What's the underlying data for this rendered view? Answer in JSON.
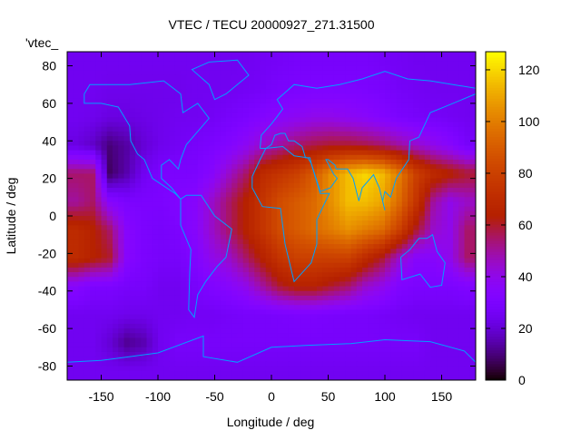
{
  "chart_data": {
    "type": "heatmap",
    "title": "VTEC / TECU 20000927_271.31500",
    "xlabel": "Longitude / deg",
    "ylabel": "Latitude / deg",
    "legend_key": "'vtec_",
    "xlim": [
      -180,
      180
    ],
    "ylim": [
      -87.5,
      87.5
    ],
    "xticks": [
      "-150",
      "-100",
      "-50",
      "0",
      "50",
      "100",
      "150"
    ],
    "xtick_values": [
      -150,
      -100,
      -50,
      0,
      50,
      100,
      150
    ],
    "yticks": [
      "80",
      "60",
      "40",
      "20",
      "0",
      "-20",
      "-40",
      "-60",
      "-80"
    ],
    "ytick_values": [
      80,
      60,
      40,
      20,
      0,
      -20,
      -40,
      -60,
      -80
    ],
    "colorbar": {
      "range": [
        0,
        127
      ],
      "ticks": [
        "0",
        "20",
        "40",
        "60",
        "80",
        "100",
        "120"
      ],
      "tick_values": [
        0,
        20,
        40,
        60,
        80,
        100,
        120
      ],
      "palette": "black-purple-red-orange-yellow"
    },
    "coastline_color": "#00a0ff",
    "grid_lon": [
      -172.5,
      -157.5,
      -142.5,
      -127.5,
      -112.5,
      -97.5,
      -82.5,
      -67.5,
      -52.5,
      -37.5,
      -22.5,
      -7.5,
      7.5,
      22.5,
      37.5,
      52.5,
      67.5,
      82.5,
      97.5,
      112.5,
      127.5,
      142.5,
      157.5,
      172.5
    ],
    "grid_lat": [
      82.5,
      67.5,
      52.5,
      37.5,
      22.5,
      7.5,
      -7.5,
      -22.5,
      -37.5,
      -52.5,
      -67.5,
      -82.5
    ],
    "values": [
      [
        25,
        25,
        25,
        25,
        25,
        25,
        25,
        25,
        25,
        25,
        25,
        26,
        27,
        28,
        28,
        28,
        28,
        28,
        27,
        26,
        25,
        25,
        25,
        25
      ],
      [
        25,
        25,
        24,
        24,
        24,
        24,
        24,
        25,
        25,
        25,
        26,
        27,
        29,
        30,
        31,
        31,
        31,
        30,
        29,
        27,
        26,
        25,
        25,
        25
      ],
      [
        25,
        24,
        22,
        22,
        23,
        24,
        25,
        25,
        26,
        28,
        30,
        33,
        36,
        38,
        40,
        40,
        38,
        36,
        33,
        30,
        28,
        27,
        26,
        25
      ],
      [
        22,
        18,
        10,
        14,
        20,
        24,
        26,
        28,
        30,
        33,
        38,
        45,
        50,
        55,
        58,
        60,
        60,
        58,
        55,
        50,
        45,
        40,
        35,
        28
      ],
      [
        55,
        55,
        8,
        15,
        25,
        30,
        30,
        30,
        35,
        45,
        55,
        70,
        75,
        80,
        90,
        105,
        115,
        120,
        115,
        100,
        80,
        70,
        65,
        60
      ],
      [
        50,
        55,
        35,
        30,
        30,
        30,
        32,
        35,
        45,
        55,
        65,
        75,
        85,
        90,
        95,
        105,
        115,
        115,
        110,
        95,
        75,
        50,
        40,
        45
      ],
      [
        70,
        65,
        55,
        35,
        30,
        28,
        30,
        35,
        45,
        55,
        65,
        75,
        85,
        90,
        95,
        100,
        105,
        100,
        95,
        80,
        60,
        45,
        40,
        55
      ],
      [
        70,
        65,
        60,
        35,
        30,
        28,
        28,
        32,
        40,
        45,
        55,
        65,
        75,
        80,
        80,
        80,
        80,
        70,
        60,
        45,
        35,
        35,
        40,
        55
      ],
      [
        35,
        30,
        30,
        28,
        28,
        25,
        25,
        28,
        32,
        35,
        40,
        50,
        60,
        65,
        65,
        60,
        55,
        45,
        40,
        32,
        30,
        30,
        30,
        32
      ],
      [
        25,
        25,
        25,
        24,
        24,
        25,
        25,
        26,
        26,
        27,
        28,
        28,
        29,
        30,
        30,
        29,
        28,
        28,
        27,
        26,
        25,
        25,
        25,
        25
      ],
      [
        25,
        25,
        20,
        12,
        15,
        25,
        28,
        28,
        28,
        28,
        28,
        28,
        28,
        28,
        28,
        28,
        28,
        28,
        28,
        28,
        28,
        25,
        25,
        25
      ],
      [
        25,
        25,
        25,
        25,
        25,
        25,
        25,
        25,
        25,
        25,
        25,
        25,
        25,
        25,
        25,
        25,
        25,
        25,
        25,
        25,
        25,
        25,
        25,
        25
      ]
    ]
  }
}
